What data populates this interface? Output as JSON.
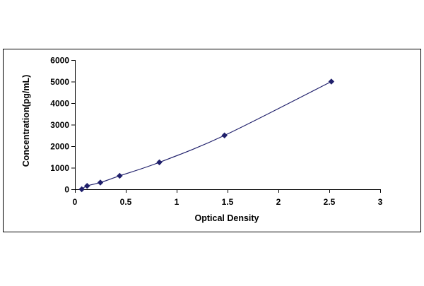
{
  "chart_data": {
    "type": "scatter",
    "title": "",
    "xlabel": "Optical Density",
    "ylabel": "Concentration(pg/mL)",
    "xlim": [
      0,
      3
    ],
    "ylim": [
      0,
      6000
    ],
    "x_ticks": [
      "0",
      "0.5",
      "1",
      "1.5",
      "2",
      "2.5",
      "3"
    ],
    "y_ticks": [
      "0",
      "1000",
      "2000",
      "3000",
      "4000",
      "5000",
      "6000"
    ],
    "grid": false,
    "legend": "none",
    "trendline": "smooth curve through points",
    "marker_color": "#1f1f6b",
    "line_color": "#1f1f6b",
    "series": [
      {
        "x": [
          0.067,
          0.12,
          0.25,
          0.44,
          0.83,
          1.47,
          2.52
        ],
        "y": [
          0,
          156,
          312,
          625,
          1250,
          2500,
          5000
        ]
      }
    ]
  }
}
